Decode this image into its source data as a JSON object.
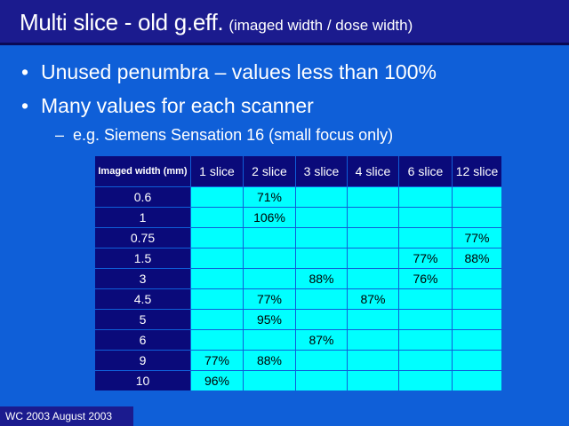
{
  "slide": {
    "title_main": "Multi slice - old g.eff.",
    "title_sub": "(imaged width / dose width)",
    "bullets": [
      "Unused penumbra – values less than 100%",
      "Many values for each scanner"
    ],
    "bullet_symbol": "•",
    "sub_bullet": "e.g. Siemens Sensation 16 (small focus only)",
    "sub_bullet_symbol": "–",
    "footer": "WC 2003 August 2003"
  },
  "table": {
    "row_header_label": "Imaged width (mm)",
    "columns": [
      "1 slice",
      "2 slice",
      "3 slice",
      "4 slice",
      "6 slice",
      "12 slice"
    ],
    "rows": [
      {
        "label": "0.6",
        "cells": [
          "",
          "71%",
          "",
          "",
          "",
          ""
        ]
      },
      {
        "label": "1",
        "cells": [
          "",
          "106%",
          "",
          "",
          "",
          ""
        ]
      },
      {
        "label": "0.75",
        "cells": [
          "",
          "",
          "",
          "",
          "",
          "77%"
        ]
      },
      {
        "label": "1.5",
        "cells": [
          "",
          "",
          "",
          "",
          "77%",
          "88%"
        ]
      },
      {
        "label": "3",
        "cells": [
          "",
          "",
          "88%",
          "",
          "76%",
          ""
        ]
      },
      {
        "label": "4.5",
        "cells": [
          "",
          "77%",
          "",
          "87%",
          "",
          ""
        ]
      },
      {
        "label": "5",
        "cells": [
          "",
          "95%",
          "",
          "",
          "",
          ""
        ]
      },
      {
        "label": "6",
        "cells": [
          "",
          "",
          "87%",
          "",
          "",
          ""
        ]
      },
      {
        "label": "9",
        "cells": [
          "77%",
          "88%",
          "",
          "",
          "",
          ""
        ]
      },
      {
        "label": "10",
        "cells": [
          "96%",
          "",
          "",
          "",
          "",
          ""
        ]
      }
    ]
  },
  "colors": {
    "background": "#0F5FD8",
    "title_bar": "#1B1B8E",
    "header_cells": "#0A0A7A",
    "data_cells": "#00FFFF"
  }
}
